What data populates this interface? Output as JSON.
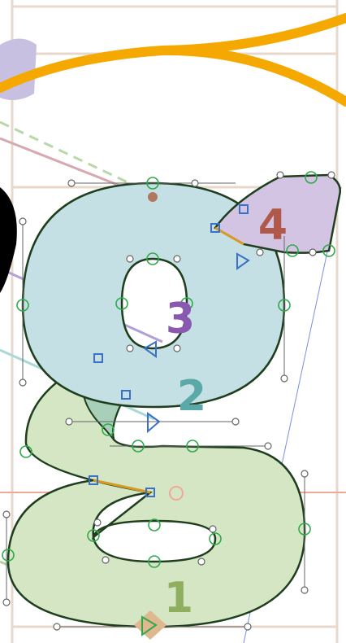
{
  "contours": [
    {
      "label": "1"
    },
    {
      "label": "2"
    },
    {
      "label": "3"
    },
    {
      "label": "4"
    }
  ]
}
